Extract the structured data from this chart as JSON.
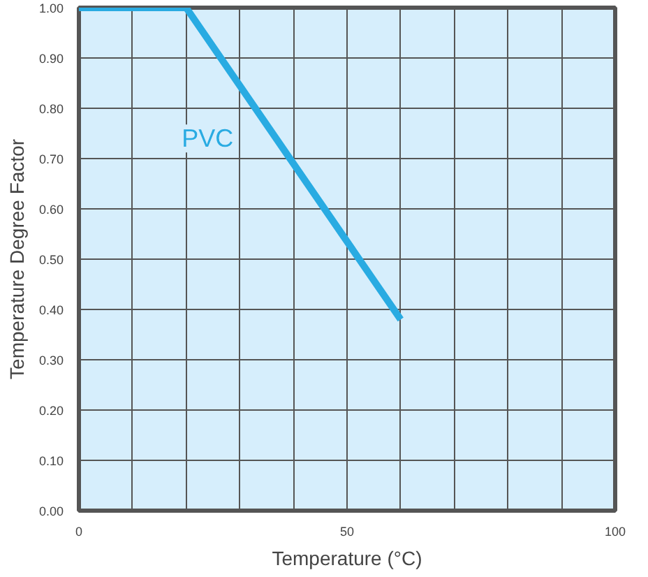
{
  "chart_data": {
    "type": "line",
    "xlabel": "Temperature (°C)",
    "ylabel": "Temperature Degree Factor",
    "x": [
      0,
      20,
      60
    ],
    "series": [
      {
        "name": "PVC",
        "color": "#29abe2",
        "values": [
          1.0,
          1.0,
          0.38
        ]
      }
    ],
    "xlim": [
      0,
      100
    ],
    "ylim": [
      0,
      1
    ],
    "xticks": [
      0,
      {
        "value": 10,
        "label": null
      },
      {
        "value": 20,
        "label": null
      },
      {
        "value": 30,
        "label": null
      },
      {
        "value": 40,
        "label": null
      },
      50,
      {
        "value": 60,
        "label": null
      },
      {
        "value": 70,
        "label": null
      },
      {
        "value": 80,
        "label": null
      },
      {
        "value": 90,
        "label": null
      },
      100
    ],
    "yticks": [
      {
        "value": 0,
        "label": "0.00"
      },
      {
        "value": 0.1,
        "label": "0.10"
      },
      {
        "value": 0.2,
        "label": "0.20"
      },
      {
        "value": 0.3,
        "label": "0.30"
      },
      {
        "value": 0.4,
        "label": "0.40"
      },
      {
        "value": 0.5,
        "label": "0.50"
      },
      {
        "value": 0.6,
        "label": "0.60"
      },
      {
        "value": 0.7,
        "label": "0.70"
      },
      {
        "value": 0.8,
        "label": "0.80"
      },
      {
        "value": 0.9,
        "label": "0.90"
      },
      {
        "value": 1,
        "label": "1.00"
      }
    ],
    "grid": true,
    "line_style": "solid"
  }
}
